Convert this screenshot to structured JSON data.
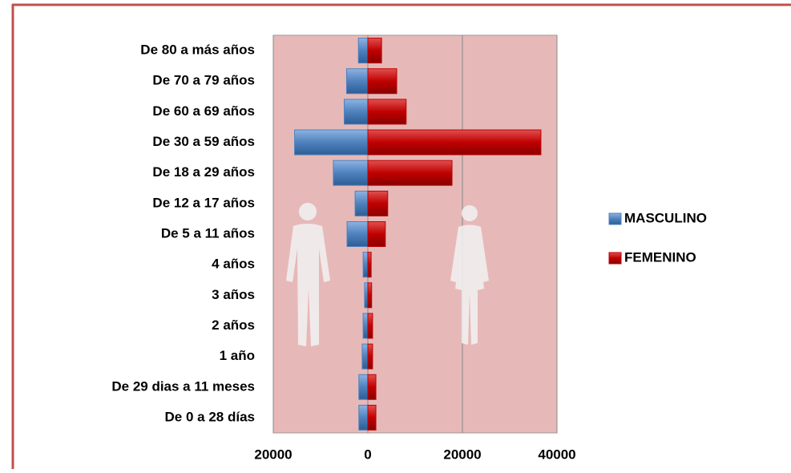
{
  "chart_data": {
    "type": "bar",
    "orientation": "horizontal",
    "stacked": "diverging",
    "categories": [
      "De 80 a más años",
      "De 70 a 79 años",
      "De 60 a 69 años",
      "De 30 a 59 años",
      "De 18 a 29 años",
      "De 12 a 17 años",
      "De 5 a 11 años",
      "4 años",
      "3 años",
      "2 años",
      "1 año",
      "De 29 dias a 11 meses",
      "De 0 a 28 días"
    ],
    "series": [
      {
        "name": "MASCULINO",
        "color": "#4f81bd",
        "values": [
          -2000,
          -4500,
          -5000,
          -15500,
          -7300,
          -2700,
          -4400,
          -1000,
          -700,
          -1000,
          -1200,
          -1900,
          -1900
        ]
      },
      {
        "name": "FEMENINO",
        "color": "#c00000",
        "values": [
          2900,
          6100,
          8100,
          36600,
          17800,
          4200,
          3700,
          700,
          800,
          1000,
          1000,
          1700,
          1700
        ]
      }
    ],
    "xlim": [
      -20000,
      40000
    ],
    "xticks": [
      {
        "value": -20000,
        "label": "20000"
      },
      0,
      20000,
      40000
    ],
    "grid": true,
    "legend": "right",
    "background": "#e6b9b8"
  }
}
